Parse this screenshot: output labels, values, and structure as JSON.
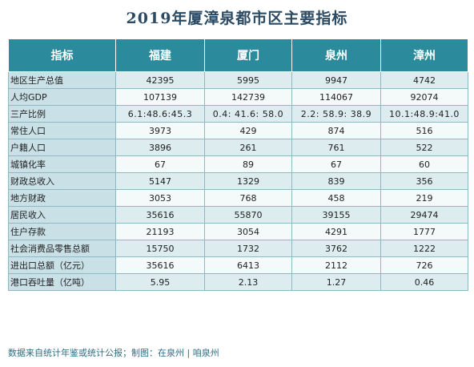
{
  "title": "2019年厦漳泉都市区主要指标",
  "table": {
    "headers": [
      "指标",
      "福建",
      "厦门",
      "泉州",
      "漳州"
    ],
    "rows": [
      [
        "地区生产总值",
        "42395",
        "5995",
        "9947",
        "4742"
      ],
      [
        "人均GDP",
        "107139",
        "142739",
        "114067",
        "92074"
      ],
      [
        "三产比例",
        "6.1:48.6:45.3",
        "0.4: 41.6: 58.0",
        "2.2: 58.9: 38.9",
        "10.1:48.9:41.0"
      ],
      [
        "常住人口",
        "3973",
        "429",
        "874",
        "516"
      ],
      [
        "户籍人口",
        "3896",
        "261",
        "761",
        "522"
      ],
      [
        "城镇化率",
        "67",
        "89",
        "67",
        "60"
      ],
      [
        "财政总收入",
        "5147",
        "1329",
        "839",
        "356"
      ],
      [
        "地方财政",
        "3053",
        "768",
        "458",
        "219"
      ],
      [
        "居民收入",
        "35616",
        "55870",
        "39155",
        "29474"
      ],
      [
        "住户存款",
        "21193",
        "3054",
        "4291",
        "1777"
      ],
      [
        "社会消费品零售总额",
        "15750",
        "1732",
        "3762",
        "1222"
      ],
      [
        "进出口总额（亿元）",
        "35616",
        "6413",
        "2112",
        "726"
      ],
      [
        "港口吞吐量（亿吨）",
        "5.95",
        "2.13",
        "1.27",
        "0.46"
      ]
    ]
  },
  "footer": "数据来自统计年鉴或统计公报；制图：在泉州 | 咱泉州",
  "colors": {
    "header_bg": "#2b8a9b",
    "row_odd": "#dcecef",
    "row_even": "#f4f9fa",
    "title": "#2b4a63"
  }
}
